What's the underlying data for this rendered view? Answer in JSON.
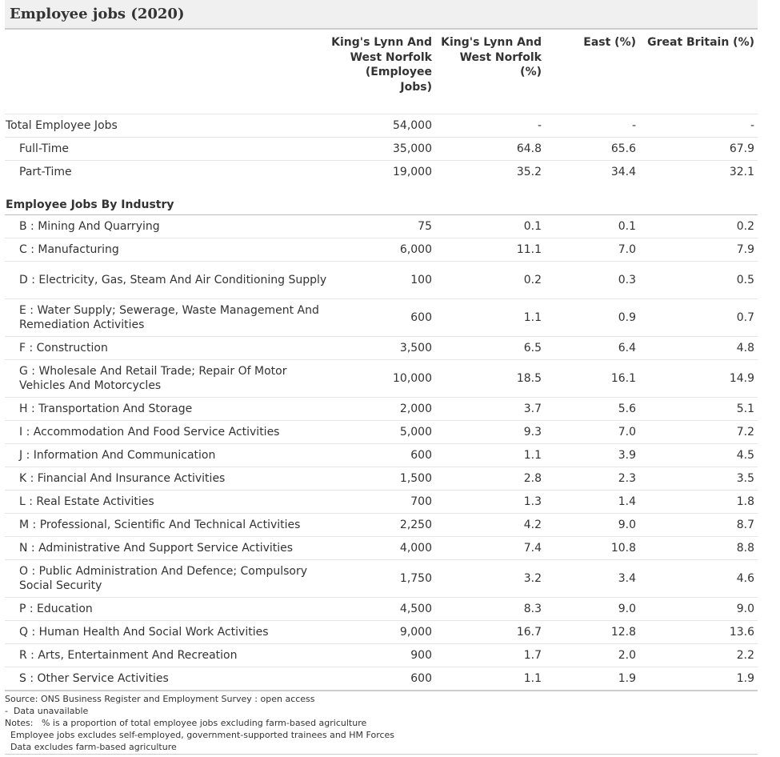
{
  "title": "Employee jobs (2020)",
  "columns": {
    "label": "",
    "col1": "King's Lynn And West Norfolk (Employee Jobs)",
    "col2": "King's Lynn And West Norfolk (%)",
    "col3": "East (%)",
    "col4": "Great Britain (%)"
  },
  "summary_rows": [
    {
      "label": "Total Employee Jobs",
      "c1": "54,000",
      "c2": "-",
      "c3": "-",
      "c4": "-"
    },
    {
      "label": "Full-Time",
      "c1": "35,000",
      "c2": "64.8",
      "c3": "65.6",
      "c4": "67.9"
    },
    {
      "label": "Part-Time",
      "c1": "19,000",
      "c2": "35.2",
      "c3": "34.4",
      "c4": "32.1"
    }
  ],
  "section_title": "Employee Jobs By Industry",
  "industry_rows": [
    {
      "label": "B : Mining And Quarrying",
      "c1": "75",
      "c2": "0.1",
      "c3": "0.1",
      "c4": "0.2"
    },
    {
      "label": "C : Manufacturing",
      "c1": "6,000",
      "c2": "11.1",
      "c3": "7.0",
      "c4": "7.9"
    },
    {
      "label": "D : Electricity, Gas, Steam And Air Conditioning Supply",
      "c1": "100",
      "c2": "0.2",
      "c3": "0.3",
      "c4": "0.5"
    },
    {
      "label": "E : Water Supply; Sewerage, Waste Management And Remediation Activities",
      "c1": "600",
      "c2": "1.1",
      "c3": "0.9",
      "c4": "0.7"
    },
    {
      "label": "F : Construction",
      "c1": "3,500",
      "c2": "6.5",
      "c3": "6.4",
      "c4": "4.8"
    },
    {
      "label": "G : Wholesale And Retail Trade; Repair Of Motor Vehicles And Motorcycles",
      "c1": "10,000",
      "c2": "18.5",
      "c3": "16.1",
      "c4": "14.9"
    },
    {
      "label": "H : Transportation And Storage",
      "c1": "2,000",
      "c2": "3.7",
      "c3": "5.6",
      "c4": "5.1"
    },
    {
      "label": "I : Accommodation And Food Service Activities",
      "c1": "5,000",
      "c2": "9.3",
      "c3": "7.0",
      "c4": "7.2"
    },
    {
      "label": "J : Information And Communication",
      "c1": "600",
      "c2": "1.1",
      "c3": "3.9",
      "c4": "4.5"
    },
    {
      "label": "K : Financial And Insurance Activities",
      "c1": "1,500",
      "c2": "2.8",
      "c3": "2.3",
      "c4": "3.5"
    },
    {
      "label": "L : Real Estate Activities",
      "c1": "700",
      "c2": "1.3",
      "c3": "1.4",
      "c4": "1.8"
    },
    {
      "label": "M : Professional, Scientific And Technical Activities",
      "c1": "2,250",
      "c2": "4.2",
      "c3": "9.0",
      "c4": "8.7"
    },
    {
      "label": "N : Administrative And Support Service Activities",
      "c1": "4,000",
      "c2": "7.4",
      "c3": "10.8",
      "c4": "8.8"
    },
    {
      "label": "O : Public Administration And Defence; Compulsory Social Security",
      "c1": "1,750",
      "c2": "3.2",
      "c3": "3.4",
      "c4": "4.6"
    },
    {
      "label": "P : Education",
      "c1": "4,500",
      "c2": "8.3",
      "c3": "9.0",
      "c4": "9.0"
    },
    {
      "label": "Q : Human Health And Social Work Activities",
      "c1": "9,000",
      "c2": "16.7",
      "c3": "12.8",
      "c4": "13.6"
    },
    {
      "label": "R : Arts, Entertainment And Recreation",
      "c1": "900",
      "c2": "1.7",
      "c3": "2.0",
      "c4": "2.2"
    },
    {
      "label": "S : Other Service Activities",
      "c1": "600",
      "c2": "1.1",
      "c3": "1.9",
      "c4": "1.9"
    }
  ],
  "footer": [
    "Source: ONS Business Register and Employment Survey : open access",
    "-  Data unavailable",
    "Notes:   % is a proportion of total employee jobs excluding farm-based agriculture",
    "  Employee jobs excludes self-employed, government-supported trainees and HM Forces",
    "  Data excludes farm-based agriculture"
  ]
}
